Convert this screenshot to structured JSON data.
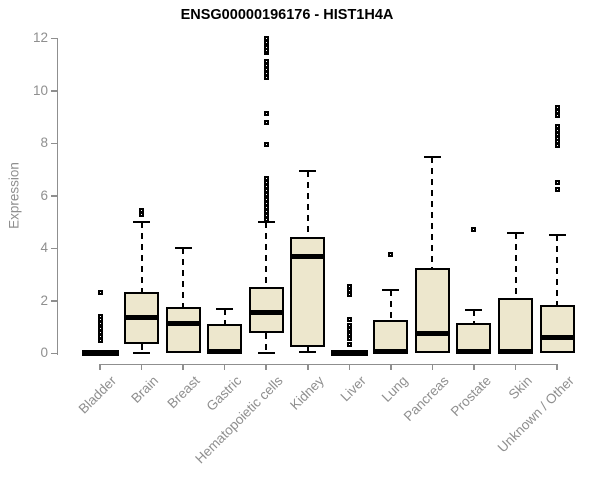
{
  "title": "ENSG00000196176 - HIST1H4A",
  "colors": {
    "box_fill": "#ede7cd",
    "box_stroke": "#000000",
    "axis": "#8f8f8f",
    "tick_label": "#8f8f8f",
    "title": "#000000",
    "background": "#ffffff"
  },
  "chart_data": {
    "type": "boxplot",
    "title": "ENSG00000196176 - HIST1H4A",
    "xlabel": "",
    "ylabel": "Expression",
    "ylim": [
      0,
      12
    ],
    "yticks": [
      0,
      2,
      4,
      6,
      8,
      10,
      12
    ],
    "grid": false,
    "legend": false,
    "categories": [
      "Bladder",
      "Brain",
      "Breast",
      "Gastric",
      "Hematopoietic cells",
      "Kidney",
      "Liver",
      "Lung",
      "Pancreas",
      "Prostate",
      "Skin",
      "Unknown / Other"
    ],
    "series": [
      {
        "name": "Bladder",
        "whisker_low": 0,
        "q1": 0,
        "median": 0.02,
        "q3": 0.04,
        "whisker_high": 0.04,
        "outliers": [
          0.5,
          0.65,
          0.8,
          0.95,
          1.15,
          1.28,
          1.4,
          2.3
        ]
      },
      {
        "name": "Brain",
        "whisker_low": 0.02,
        "q1": 0.37,
        "median": 1.38,
        "q3": 2.35,
        "whisker_high": 5.0,
        "outliers": [
          5.3,
          5.45
        ]
      },
      {
        "name": "Breast",
        "whisker_low": 0,
        "q1": 0.02,
        "median": 1.14,
        "q3": 1.77,
        "whisker_high": 4.0,
        "outliers": []
      },
      {
        "name": "Gastric",
        "whisker_low": 0,
        "q1": 0.02,
        "median": 0.07,
        "q3": 1.13,
        "whisker_high": 1.7,
        "outliers": []
      },
      {
        "name": "Hematopoietic cells",
        "whisker_low": 0.02,
        "q1": 0.76,
        "median": 1.56,
        "q3": 2.54,
        "whisker_high": 5.0,
        "outliers": [
          5.1,
          5.25,
          5.4,
          5.55,
          5.7,
          5.85,
          6.05,
          6.2,
          6.35,
          6.5,
          6.65,
          7.95,
          8.8,
          9.15,
          10.5,
          10.65,
          10.8,
          10.95,
          11.1,
          11.45,
          11.55,
          11.65,
          11.75,
          11.85,
          11.95,
          12.0
        ]
      },
      {
        "name": "Kidney",
        "whisker_low": 0.05,
        "q1": 0.25,
        "median": 3.7,
        "q3": 4.44,
        "whisker_high": 6.95,
        "outliers": []
      },
      {
        "name": "Liver",
        "whisker_low": 0,
        "q1": 0,
        "median": 0.02,
        "q3": 0.04,
        "whisker_high": 0.04,
        "outliers": [
          0.35,
          0.55,
          0.7,
          0.9,
          1.05,
          1.3,
          2.25,
          2.4,
          2.55
        ]
      },
      {
        "name": "Lung",
        "whisker_low": 0,
        "q1": 0.02,
        "median": 0.06,
        "q3": 1.27,
        "whisker_high": 2.42,
        "outliers": [
          3.75
        ]
      },
      {
        "name": "Pancreas",
        "whisker_low": 0,
        "q1": 0.03,
        "median": 0.75,
        "q3": 3.25,
        "whisker_high": 7.48,
        "outliers": []
      },
      {
        "name": "Prostate",
        "whisker_low": 0,
        "q1": 0.02,
        "median": 0.06,
        "q3": 1.14,
        "whisker_high": 1.64,
        "outliers": [
          4.7
        ]
      },
      {
        "name": "Skin",
        "whisker_low": 0,
        "q1": 0.02,
        "median": 0.06,
        "q3": 2.1,
        "whisker_high": 4.57,
        "outliers": []
      },
      {
        "name": "Unknown / Other",
        "whisker_low": 0,
        "q1": 0.03,
        "median": 0.62,
        "q3": 1.85,
        "whisker_high": 4.5,
        "outliers": [
          6.25,
          6.5,
          7.9,
          8.05,
          8.2,
          8.35,
          8.5,
          8.65,
          9.05,
          9.2,
          9.35
        ]
      }
    ]
  }
}
